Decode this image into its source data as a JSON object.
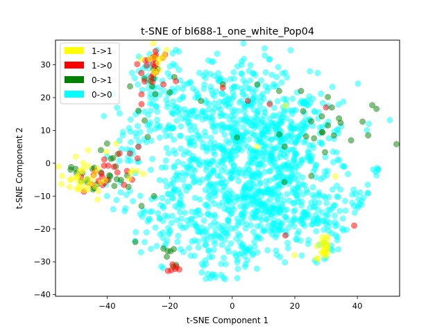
{
  "chart_data": {
    "type": "scatter",
    "title": "t-SNE of bl688-1_one_white_Pop04",
    "xlabel": "t-SNE Component 1",
    "ylabel": "t-SNE Component 2",
    "xlim": [
      -56.5,
      53.5
    ],
    "ylim": [
      -40.5,
      37.5
    ],
    "xticks": [
      -40,
      -20,
      0,
      20,
      40
    ],
    "yticks": [
      -40,
      -30,
      -20,
      -10,
      0,
      10,
      20,
      30
    ],
    "xtick_labels": [
      "−40",
      "−20",
      "0",
      "20",
      "40"
    ],
    "ytick_labels": [
      "−40",
      "−30",
      "−20",
      "−10",
      "0",
      "10",
      "20",
      "30"
    ],
    "grid": false,
    "legend_position": "top-left",
    "marker_alpha": 0.5,
    "series": [
      {
        "name": "1->1",
        "color": "#ffff00",
        "clusters": [
          {
            "cx": -48,
            "cy": -5,
            "sx": 3.5,
            "sy": 2.5,
            "n": 30
          },
          {
            "cx": 29.5,
            "cy": -26,
            "sx": 1.3,
            "sy": 2.2,
            "n": 22
          },
          {
            "cx": -23,
            "cy": 32,
            "sx": 2.5,
            "sy": 2.2,
            "n": 10
          },
          {
            "cx": -34,
            "cy": -2,
            "sx": 2.5,
            "sy": 3,
            "n": 6
          }
        ],
        "points": [
          [
            -50,
            2
          ],
          [
            -46,
            4
          ],
          [
            -49,
            -8
          ],
          [
            -43,
            -11
          ],
          [
            -21,
            34.5
          ],
          [
            -25,
            28
          ],
          [
            17,
            17.5
          ],
          [
            20,
            -28
          ],
          [
            27,
            -29
          ],
          [
            -37,
            6
          ],
          [
            33,
            -4
          ],
          [
            8,
            5
          ]
        ]
      },
      {
        "name": "1->0",
        "color": "#ff0000",
        "clusters": [
          {
            "cx": -43,
            "cy": -4,
            "sx": 3,
            "sy": 2.5,
            "n": 14
          },
          {
            "cx": -28,
            "cy": 27,
            "sx": 2,
            "sy": 2.5,
            "n": 12
          },
          {
            "cx": -24,
            "cy": 31,
            "sx": 2.5,
            "sy": 2.5,
            "n": 8
          },
          {
            "cx": -19,
            "cy": -32,
            "sx": 0.8,
            "sy": 0.8,
            "n": 6
          },
          {
            "cx": -35,
            "cy": 0,
            "sx": 2.5,
            "sy": 2.5,
            "n": 7
          }
        ],
        "points": [
          [
            -29,
            21
          ],
          [
            -22,
            24
          ],
          [
            -18,
            25
          ],
          [
            -3,
            23
          ],
          [
            5,
            19
          ],
          [
            12,
            18
          ],
          [
            30,
            17
          ],
          [
            17,
            -22
          ],
          [
            39,
            -19
          ],
          [
            -29,
            18
          ],
          [
            -36,
            3
          ],
          [
            -32,
            -5
          ]
        ]
      },
      {
        "name": "0->1",
        "color": "#008000",
        "clusters": [
          {
            "cx": -45,
            "cy": -2,
            "sx": 4,
            "sy": 4,
            "n": 16
          },
          {
            "cx": -37,
            "cy": -6,
            "sx": 3,
            "sy": 5,
            "n": 10
          },
          {
            "cx": -25,
            "cy": 28,
            "sx": 3,
            "sy": 3,
            "n": 10
          },
          {
            "cx": -20,
            "cy": -30,
            "sx": 1.5,
            "sy": 3,
            "n": 6
          },
          {
            "cx": 25,
            "cy": 8,
            "sx": 10,
            "sy": 8,
            "n": 24
          }
        ],
        "points": [
          [
            -42,
            4
          ],
          [
            -40,
            6
          ],
          [
            -30,
            16
          ],
          [
            -28,
            13
          ],
          [
            -27,
            8
          ],
          [
            -31,
            -24
          ],
          [
            -22,
            -26
          ],
          [
            -10,
            19
          ],
          [
            -3,
            24
          ],
          [
            8,
            24
          ],
          [
            15,
            22
          ],
          [
            22,
            22
          ],
          [
            -25,
            -10
          ],
          [
            38,
            7
          ],
          [
            -29,
            -13
          ]
        ]
      },
      {
        "name": "0->0",
        "color": "#00ffff",
        "clusters": [
          {
            "cx": 8,
            "cy": 2,
            "sx": 10,
            "sy": 11,
            "n": 420
          },
          {
            "cx": 22,
            "cy": 6,
            "sx": 9,
            "sy": 9,
            "n": 160
          },
          {
            "cx": 10,
            "cy": -15,
            "sx": 11,
            "sy": 6,
            "n": 180
          },
          {
            "cx": 25,
            "cy": -17,
            "sx": 6,
            "sy": 5,
            "n": 80
          },
          {
            "cx": 2,
            "cy": 20,
            "sx": 10,
            "sy": 7,
            "n": 120
          },
          {
            "cx": -15,
            "cy": 12,
            "sx": 7,
            "sy": 8,
            "n": 100
          },
          {
            "cx": -25,
            "cy": 20,
            "sx": 3.5,
            "sy": 6,
            "n": 50
          },
          {
            "cx": -15,
            "cy": -8,
            "sx": 6,
            "sy": 8,
            "n": 90
          },
          {
            "cx": -22,
            "cy": -20,
            "sx": 6,
            "sy": 5,
            "n": 40
          },
          {
            "cx": -5,
            "cy": -20,
            "sx": 6,
            "sy": 6,
            "n": 60
          },
          {
            "cx": 40,
            "cy": -12,
            "sx": 2,
            "sy": 3,
            "n": 14
          },
          {
            "cx": 46.5,
            "cy": -2,
            "sx": 1,
            "sy": 0.8,
            "n": 6
          },
          {
            "cx": -8,
            "cy": -33,
            "sx": 1.5,
            "sy": 2.5,
            "n": 14
          },
          {
            "cx": 4,
            "cy": -28,
            "sx": 5,
            "sy": 3,
            "n": 30
          },
          {
            "cx": -3,
            "cy": 4,
            "sx": 3,
            "sy": 5,
            "n": 40
          },
          {
            "cx": -32,
            "cy": 8,
            "sx": 3,
            "sy": 5,
            "n": 25
          },
          {
            "cx": -35,
            "cy": -10,
            "sx": 3,
            "sy": 3,
            "n": 10
          },
          {
            "cx": 28,
            "cy": -28,
            "sx": 2,
            "sy": 2,
            "n": 6
          }
        ],
        "points": [
          [
            -24,
            34.5
          ],
          [
            -18,
            34.5
          ],
          [
            -17,
            34
          ],
          [
            -19,
            33.5
          ],
          [
            -6,
            31
          ],
          [
            3,
            31
          ],
          [
            3,
            30
          ],
          [
            -40,
            -10
          ],
          [
            -38,
            -14
          ],
          [
            -28,
            -24
          ],
          [
            -26,
            -2
          ],
          [
            -30,
            5
          ],
          [
            -31,
            -3
          ]
        ]
      }
    ]
  }
}
